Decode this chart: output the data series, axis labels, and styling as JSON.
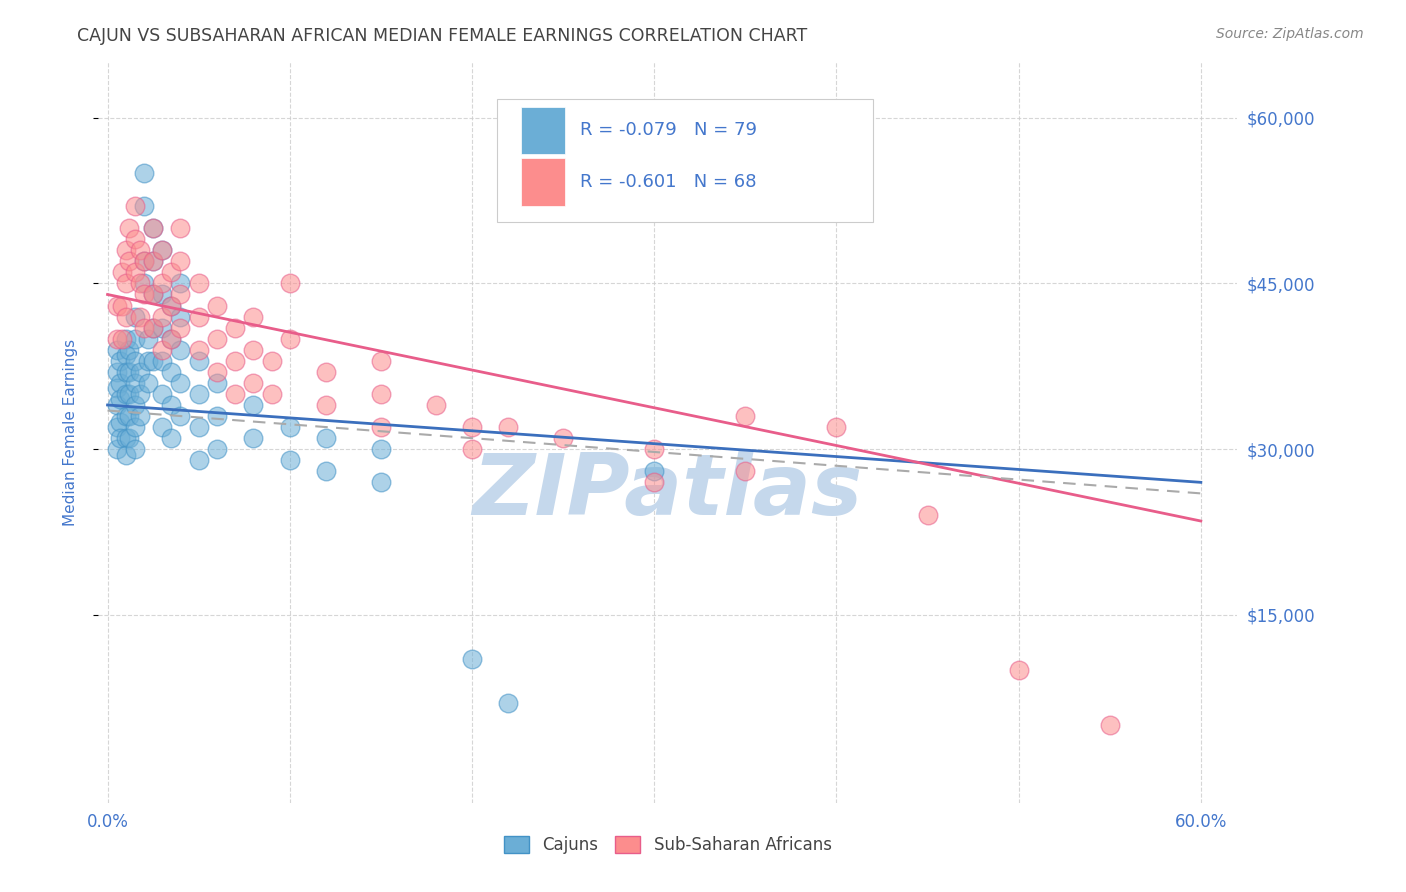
{
  "title": "CAJUN VS SUBSAHARAN AFRICAN MEDIAN FEMALE EARNINGS CORRELATION CHART",
  "source": "Source: ZipAtlas.com",
  "ylabel": "Median Female Earnings",
  "ytick_labels": [
    "$15,000",
    "$30,000",
    "$45,000",
    "$60,000"
  ],
  "ytick_values": [
    15000,
    30000,
    45000,
    60000
  ],
  "ymin": -2000,
  "ymax": 65000,
  "xmin": -0.005,
  "xmax": 0.62,
  "xtick_values": [
    0.0,
    0.6
  ],
  "cajun_color": "#6baed6",
  "cajun_edge_color": "#4292c6",
  "subsaharan_color": "#fc8d8d",
  "subsaharan_edge_color": "#e85d8a",
  "blue_line_color": "#3b6fbd",
  "pink_line_color": "#e85d8a",
  "dashed_line_color": "#aaaaaa",
  "watermark_color": "#c5d8ec",
  "watermark_text": "ZIPatlas",
  "background_color": "#ffffff",
  "title_color": "#444444",
  "axis_label_color": "#4477cc",
  "source_color": "#888888",
  "cajun_R": -0.079,
  "cajun_N": 79,
  "subsaharan_R": -0.601,
  "subsaharan_N": 68,
  "blue_line": [
    0.0,
    34000,
    0.6,
    27000
  ],
  "pink_line": [
    0.0,
    44000,
    0.6,
    23500
  ],
  "dash_line": [
    0.0,
    33500,
    0.6,
    26000
  ],
  "cajun_points": [
    [
      0.005,
      39000
    ],
    [
      0.005,
      37000
    ],
    [
      0.005,
      35500
    ],
    [
      0.005,
      34000
    ],
    [
      0.005,
      32000
    ],
    [
      0.005,
      30000
    ],
    [
      0.007,
      38000
    ],
    [
      0.007,
      36000
    ],
    [
      0.007,
      34500
    ],
    [
      0.007,
      32500
    ],
    [
      0.007,
      31000
    ],
    [
      0.01,
      40000
    ],
    [
      0.01,
      38500
    ],
    [
      0.01,
      37000
    ],
    [
      0.01,
      35000
    ],
    [
      0.01,
      33000
    ],
    [
      0.01,
      31000
    ],
    [
      0.01,
      29500
    ],
    [
      0.012,
      39000
    ],
    [
      0.012,
      37000
    ],
    [
      0.012,
      35000
    ],
    [
      0.012,
      33000
    ],
    [
      0.012,
      31000
    ],
    [
      0.015,
      42000
    ],
    [
      0.015,
      40000
    ],
    [
      0.015,
      38000
    ],
    [
      0.015,
      36000
    ],
    [
      0.015,
      34000
    ],
    [
      0.015,
      32000
    ],
    [
      0.015,
      30000
    ],
    [
      0.018,
      37000
    ],
    [
      0.018,
      35000
    ],
    [
      0.018,
      33000
    ],
    [
      0.02,
      55000
    ],
    [
      0.02,
      52000
    ],
    [
      0.02,
      47000
    ],
    [
      0.02,
      45000
    ],
    [
      0.022,
      40000
    ],
    [
      0.022,
      38000
    ],
    [
      0.022,
      36000
    ],
    [
      0.025,
      50000
    ],
    [
      0.025,
      47000
    ],
    [
      0.025,
      44000
    ],
    [
      0.025,
      41000
    ],
    [
      0.025,
      38000
    ],
    [
      0.03,
      48000
    ],
    [
      0.03,
      44000
    ],
    [
      0.03,
      41000
    ],
    [
      0.03,
      38000
    ],
    [
      0.03,
      35000
    ],
    [
      0.03,
      32000
    ],
    [
      0.035,
      43000
    ],
    [
      0.035,
      40000
    ],
    [
      0.035,
      37000
    ],
    [
      0.035,
      34000
    ],
    [
      0.035,
      31000
    ],
    [
      0.04,
      45000
    ],
    [
      0.04,
      42000
    ],
    [
      0.04,
      39000
    ],
    [
      0.04,
      36000
    ],
    [
      0.04,
      33000
    ],
    [
      0.05,
      38000
    ],
    [
      0.05,
      35000
    ],
    [
      0.05,
      32000
    ],
    [
      0.05,
      29000
    ],
    [
      0.06,
      36000
    ],
    [
      0.06,
      33000
    ],
    [
      0.06,
      30000
    ],
    [
      0.08,
      34000
    ],
    [
      0.08,
      31000
    ],
    [
      0.1,
      32000
    ],
    [
      0.1,
      29000
    ],
    [
      0.12,
      31000
    ],
    [
      0.12,
      28000
    ],
    [
      0.15,
      30000
    ],
    [
      0.15,
      27000
    ],
    [
      0.2,
      11000
    ],
    [
      0.22,
      7000
    ],
    [
      0.3,
      28000
    ]
  ],
  "subsaharan_points": [
    [
      0.005,
      43000
    ],
    [
      0.005,
      40000
    ],
    [
      0.008,
      46000
    ],
    [
      0.008,
      43000
    ],
    [
      0.008,
      40000
    ],
    [
      0.01,
      48000
    ],
    [
      0.01,
      45000
    ],
    [
      0.01,
      42000
    ],
    [
      0.012,
      50000
    ],
    [
      0.012,
      47000
    ],
    [
      0.015,
      52000
    ],
    [
      0.015,
      49000
    ],
    [
      0.015,
      46000
    ],
    [
      0.018,
      48000
    ],
    [
      0.018,
      45000
    ],
    [
      0.018,
      42000
    ],
    [
      0.02,
      47000
    ],
    [
      0.02,
      44000
    ],
    [
      0.02,
      41000
    ],
    [
      0.025,
      50000
    ],
    [
      0.025,
      47000
    ],
    [
      0.025,
      44000
    ],
    [
      0.025,
      41000
    ],
    [
      0.03,
      48000
    ],
    [
      0.03,
      45000
    ],
    [
      0.03,
      42000
    ],
    [
      0.03,
      39000
    ],
    [
      0.035,
      46000
    ],
    [
      0.035,
      43000
    ],
    [
      0.035,
      40000
    ],
    [
      0.04,
      50000
    ],
    [
      0.04,
      47000
    ],
    [
      0.04,
      44000
    ],
    [
      0.04,
      41000
    ],
    [
      0.05,
      45000
    ],
    [
      0.05,
      42000
    ],
    [
      0.05,
      39000
    ],
    [
      0.06,
      43000
    ],
    [
      0.06,
      40000
    ],
    [
      0.06,
      37000
    ],
    [
      0.07,
      41000
    ],
    [
      0.07,
      38000
    ],
    [
      0.07,
      35000
    ],
    [
      0.08,
      42000
    ],
    [
      0.08,
      39000
    ],
    [
      0.08,
      36000
    ],
    [
      0.09,
      38000
    ],
    [
      0.09,
      35000
    ],
    [
      0.1,
      45000
    ],
    [
      0.1,
      40000
    ],
    [
      0.12,
      37000
    ],
    [
      0.12,
      34000
    ],
    [
      0.15,
      38000
    ],
    [
      0.15,
      35000
    ],
    [
      0.15,
      32000
    ],
    [
      0.18,
      34000
    ],
    [
      0.2,
      32000
    ],
    [
      0.2,
      30000
    ],
    [
      0.22,
      32000
    ],
    [
      0.25,
      31000
    ],
    [
      0.3,
      30000
    ],
    [
      0.3,
      27000
    ],
    [
      0.35,
      33000
    ],
    [
      0.35,
      28000
    ],
    [
      0.4,
      32000
    ],
    [
      0.45,
      24000
    ],
    [
      0.5,
      10000
    ],
    [
      0.55,
      5000
    ]
  ]
}
